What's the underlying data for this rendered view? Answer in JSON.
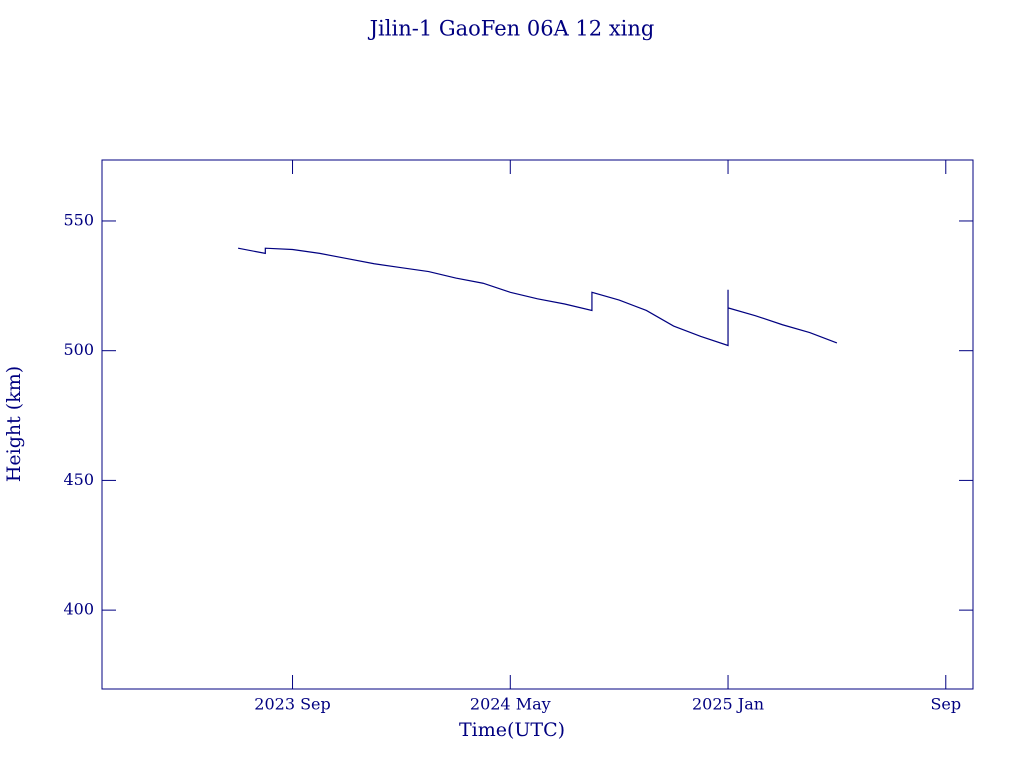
{
  "chart_data": {
    "type": "line",
    "title": "Jilin-1 GaoFen 06A 12 xing",
    "xlabel": "Time(UTC)",
    "ylabel": "Height (km)",
    "x": [
      "2023-07",
      "2023-08",
      "2023-08",
      "2023-09",
      "2023-10",
      "2023-11",
      "2023-12",
      "2024-01",
      "2024-02",
      "2024-03",
      "2024-04",
      "2024-05",
      "2024-06",
      "2024-07",
      "2024-08",
      "2024-08",
      "2024-09",
      "2024-10",
      "2024-11",
      "2024-12",
      "2025-01",
      "2025-01",
      "2025-01",
      "2025-02",
      "2025-03",
      "2025-04",
      "2025-05"
    ],
    "series": [
      {
        "color": "#000080",
        "values": [
          539.5,
          537.5,
          539.5,
          539,
          537.5,
          535.5,
          533.5,
          532,
          530.5,
          528,
          526,
          522.5,
          520,
          518,
          515.5,
          522.5,
          519.5,
          515.5,
          509.5,
          505.5,
          502,
          523.5,
          516.5,
          513.5,
          510,
          507,
          503
        ]
      }
    ],
    "xlim": [
      "2023-02",
      "2025-10"
    ],
    "xticks": [
      {
        "value": "2023-09",
        "label": "2023 Sep"
      },
      {
        "value": "2024-05",
        "label": "2024 May"
      },
      {
        "value": "2025-01",
        "label": "2025 Jan"
      },
      {
        "value": "2025-09",
        "label": "Sep"
      }
    ],
    "ylim": [
      369.6,
      573.5
    ],
    "yticks": [
      400,
      450,
      500,
      550
    ]
  }
}
